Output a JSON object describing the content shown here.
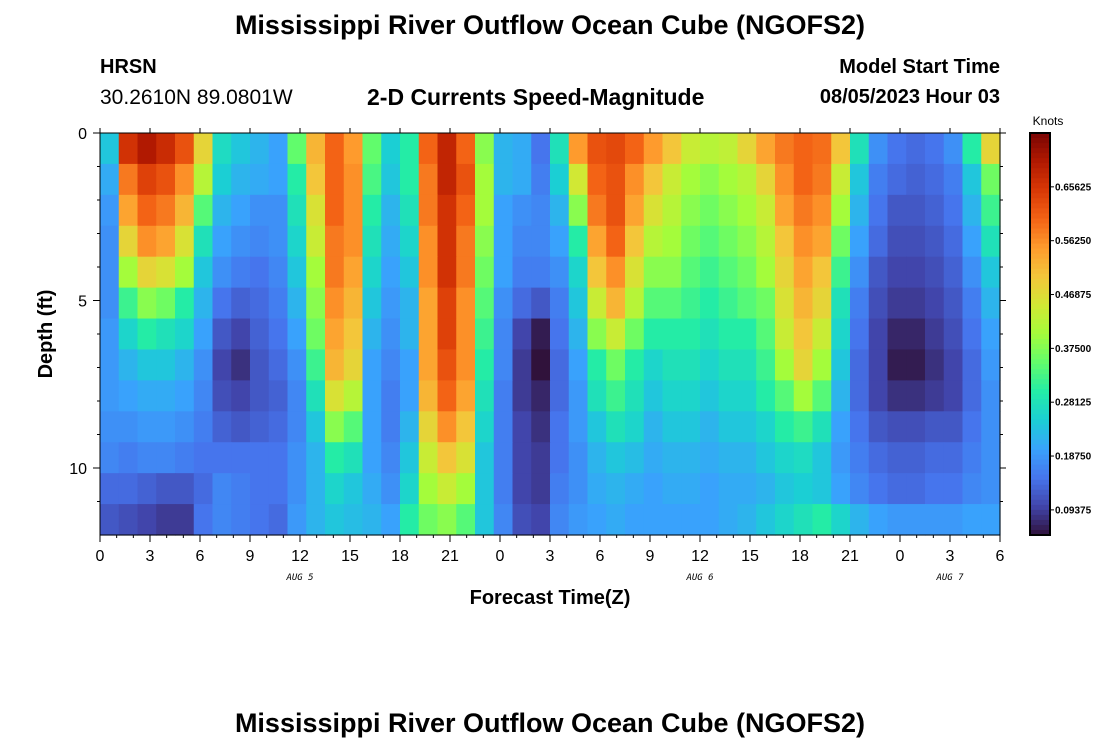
{
  "header": {
    "title": "Mississippi River Outflow Ocean Cube (NGOFS2)",
    "station_name": "HRSN",
    "station_coords": "30.2610N  89.0801W",
    "subtitle": "2-D Currents Speed-Magnitude",
    "model_start_label": "Model Start Time",
    "model_start_time": "08/05/2023 Hour 03"
  },
  "footer": {
    "title": "Mississippi River Outflow Ocean Cube (NGOFS2)"
  },
  "chart_data": {
    "type": "heatmap",
    "title": "2-D Currents Speed-Magnitude",
    "xlabel": "Forecast Time(Z)",
    "ylabel": "Depth (ft)",
    "x_tick_labels": [
      "0",
      "3",
      "6",
      "9",
      "12",
      "15",
      "18",
      "21",
      "0",
      "3",
      "6",
      "9",
      "12",
      "15",
      "18",
      "21",
      "0",
      "3",
      "6"
    ],
    "x_range_hours": [
      0,
      54
    ],
    "y_tick_values": [
      0,
      5,
      10
    ],
    "y_range_ft": [
      0,
      12
    ],
    "date_labels": [
      {
        "label": "AUG 5",
        "hour": 12
      },
      {
        "label": "AUG 6",
        "hour": 36
      },
      {
        "label": "AUG 7",
        "hour": 51
      }
    ],
    "colorbar": {
      "label": "Knots",
      "range": [
        0.05,
        0.75
      ],
      "tick_labels": [
        "0.65625",
        "0.56250",
        "0.46875",
        "0.37500",
        "0.28125",
        "0.18750",
        "0.09375"
      ],
      "colors": [
        "#30123b",
        "#4145ab",
        "#4675ed",
        "#39a2fc",
        "#1bcfd4",
        "#24eca6",
        "#61fc6c",
        "#a4fc3b",
        "#d1e834",
        "#f3c63a",
        "#fe9b2d",
        "#f36315",
        "#d93806",
        "#b11901",
        "#7a0403"
      ]
    },
    "speed_knots_grid": [
      [
        0.24,
        0.66,
        0.7,
        0.67,
        0.62,
        0.48,
        0.27,
        0.24,
        0.22,
        0.2,
        0.35,
        0.52,
        0.6,
        0.55,
        0.35,
        0.25,
        0.3,
        0.6,
        0.68,
        0.6,
        0.38,
        0.22,
        0.21,
        0.15,
        0.28,
        0.55,
        0.62,
        0.63,
        0.6,
        0.55,
        0.5,
        0.44,
        0.42,
        0.43,
        0.48,
        0.54,
        0.58,
        0.6,
        0.59,
        0.5,
        0.28,
        0.18,
        0.15,
        0.14,
        0.15,
        0.18,
        0.3,
        0.48
      ],
      [
        0.21,
        0.58,
        0.64,
        0.62,
        0.56,
        0.42,
        0.25,
        0.22,
        0.21,
        0.2,
        0.3,
        0.5,
        0.6,
        0.56,
        0.33,
        0.24,
        0.3,
        0.58,
        0.68,
        0.62,
        0.4,
        0.22,
        0.21,
        0.16,
        0.25,
        0.45,
        0.6,
        0.62,
        0.56,
        0.5,
        0.44,
        0.4,
        0.38,
        0.4,
        0.42,
        0.48,
        0.56,
        0.6,
        0.58,
        0.44,
        0.24,
        0.16,
        0.14,
        0.13,
        0.14,
        0.16,
        0.24,
        0.36
      ],
      [
        0.19,
        0.54,
        0.6,
        0.58,
        0.52,
        0.34,
        0.22,
        0.2,
        0.18,
        0.18,
        0.28,
        0.46,
        0.6,
        0.56,
        0.3,
        0.22,
        0.28,
        0.58,
        0.66,
        0.6,
        0.4,
        0.2,
        0.18,
        0.17,
        0.22,
        0.38,
        0.58,
        0.62,
        0.54,
        0.46,
        0.42,
        0.38,
        0.36,
        0.38,
        0.4,
        0.44,
        0.54,
        0.58,
        0.56,
        0.4,
        0.22,
        0.15,
        0.12,
        0.12,
        0.13,
        0.15,
        0.22,
        0.32
      ],
      [
        0.18,
        0.48,
        0.56,
        0.54,
        0.46,
        0.28,
        0.2,
        0.18,
        0.17,
        0.18,
        0.26,
        0.44,
        0.58,
        0.56,
        0.28,
        0.21,
        0.26,
        0.56,
        0.66,
        0.58,
        0.38,
        0.2,
        0.17,
        0.17,
        0.2,
        0.3,
        0.54,
        0.6,
        0.5,
        0.42,
        0.4,
        0.36,
        0.34,
        0.36,
        0.38,
        0.42,
        0.5,
        0.56,
        0.54,
        0.36,
        0.2,
        0.14,
        0.11,
        0.11,
        0.12,
        0.14,
        0.2,
        0.28
      ],
      [
        0.18,
        0.4,
        0.48,
        0.46,
        0.4,
        0.24,
        0.18,
        0.16,
        0.15,
        0.17,
        0.24,
        0.4,
        0.58,
        0.54,
        0.26,
        0.2,
        0.24,
        0.56,
        0.66,
        0.58,
        0.36,
        0.2,
        0.16,
        0.16,
        0.18,
        0.26,
        0.5,
        0.56,
        0.46,
        0.38,
        0.38,
        0.34,
        0.32,
        0.34,
        0.36,
        0.4,
        0.48,
        0.54,
        0.5,
        0.32,
        0.18,
        0.12,
        0.1,
        0.1,
        0.11,
        0.13,
        0.18,
        0.24
      ],
      [
        0.18,
        0.32,
        0.38,
        0.36,
        0.3,
        0.22,
        0.15,
        0.13,
        0.14,
        0.16,
        0.22,
        0.38,
        0.56,
        0.52,
        0.24,
        0.19,
        0.22,
        0.54,
        0.64,
        0.56,
        0.34,
        0.18,
        0.14,
        0.12,
        0.16,
        0.24,
        0.44,
        0.52,
        0.42,
        0.34,
        0.34,
        0.32,
        0.3,
        0.32,
        0.34,
        0.36,
        0.46,
        0.52,
        0.48,
        0.28,
        0.16,
        0.11,
        0.09,
        0.09,
        0.1,
        0.12,
        0.16,
        0.22
      ],
      [
        0.19,
        0.26,
        0.3,
        0.28,
        0.26,
        0.2,
        0.12,
        0.1,
        0.13,
        0.15,
        0.2,
        0.36,
        0.54,
        0.5,
        0.22,
        0.18,
        0.22,
        0.54,
        0.64,
        0.56,
        0.32,
        0.17,
        0.1,
        0.06,
        0.15,
        0.22,
        0.38,
        0.44,
        0.36,
        0.3,
        0.3,
        0.3,
        0.28,
        0.3,
        0.3,
        0.34,
        0.44,
        0.5,
        0.44,
        0.26,
        0.15,
        0.1,
        0.07,
        0.07,
        0.09,
        0.11,
        0.15,
        0.2
      ],
      [
        0.19,
        0.22,
        0.24,
        0.24,
        0.22,
        0.18,
        0.1,
        0.08,
        0.12,
        0.14,
        0.18,
        0.32,
        0.52,
        0.48,
        0.2,
        0.17,
        0.2,
        0.54,
        0.62,
        0.56,
        0.3,
        0.17,
        0.09,
        0.04,
        0.14,
        0.2,
        0.3,
        0.36,
        0.3,
        0.26,
        0.28,
        0.28,
        0.26,
        0.28,
        0.28,
        0.32,
        0.4,
        0.48,
        0.4,
        0.24,
        0.14,
        0.1,
        0.06,
        0.06,
        0.08,
        0.1,
        0.14,
        0.19
      ],
      [
        0.19,
        0.2,
        0.21,
        0.21,
        0.2,
        0.17,
        0.11,
        0.1,
        0.12,
        0.13,
        0.17,
        0.28,
        0.46,
        0.42,
        0.2,
        0.16,
        0.2,
        0.52,
        0.6,
        0.54,
        0.28,
        0.16,
        0.09,
        0.07,
        0.14,
        0.19,
        0.28,
        0.32,
        0.28,
        0.24,
        0.26,
        0.26,
        0.24,
        0.26,
        0.26,
        0.3,
        0.34,
        0.4,
        0.34,
        0.22,
        0.14,
        0.1,
        0.08,
        0.08,
        0.09,
        0.1,
        0.14,
        0.18
      ],
      [
        0.18,
        0.18,
        0.19,
        0.19,
        0.18,
        0.16,
        0.13,
        0.12,
        0.13,
        0.14,
        0.17,
        0.24,
        0.38,
        0.34,
        0.2,
        0.16,
        0.22,
        0.48,
        0.56,
        0.5,
        0.26,
        0.16,
        0.1,
        0.08,
        0.15,
        0.19,
        0.24,
        0.28,
        0.26,
        0.22,
        0.24,
        0.24,
        0.22,
        0.24,
        0.24,
        0.26,
        0.3,
        0.32,
        0.28,
        0.2,
        0.15,
        0.12,
        0.11,
        0.11,
        0.12,
        0.12,
        0.15,
        0.18
      ],
      [
        0.17,
        0.16,
        0.17,
        0.17,
        0.16,
        0.15,
        0.15,
        0.15,
        0.15,
        0.15,
        0.18,
        0.22,
        0.3,
        0.28,
        0.2,
        0.17,
        0.24,
        0.44,
        0.5,
        0.46,
        0.24,
        0.16,
        0.1,
        0.09,
        0.15,
        0.18,
        0.22,
        0.24,
        0.23,
        0.21,
        0.22,
        0.22,
        0.21,
        0.22,
        0.22,
        0.24,
        0.26,
        0.27,
        0.24,
        0.19,
        0.16,
        0.14,
        0.13,
        0.13,
        0.14,
        0.14,
        0.16,
        0.18
      ],
      [
        0.14,
        0.14,
        0.13,
        0.12,
        0.12,
        0.14,
        0.17,
        0.16,
        0.15,
        0.15,
        0.18,
        0.22,
        0.26,
        0.24,
        0.21,
        0.18,
        0.26,
        0.4,
        0.44,
        0.4,
        0.24,
        0.16,
        0.1,
        0.09,
        0.16,
        0.18,
        0.21,
        0.22,
        0.21,
        0.2,
        0.21,
        0.21,
        0.2,
        0.21,
        0.21,
        0.22,
        0.24,
        0.25,
        0.24,
        0.2,
        0.17,
        0.15,
        0.14,
        0.14,
        0.15,
        0.15,
        0.17,
        0.18
      ],
      [
        0.12,
        0.11,
        0.1,
        0.09,
        0.09,
        0.15,
        0.17,
        0.16,
        0.15,
        0.14,
        0.19,
        0.22,
        0.24,
        0.23,
        0.22,
        0.2,
        0.3,
        0.36,
        0.38,
        0.34,
        0.24,
        0.17,
        0.11,
        0.1,
        0.17,
        0.19,
        0.2,
        0.21,
        0.2,
        0.2,
        0.2,
        0.2,
        0.2,
        0.21,
        0.22,
        0.24,
        0.26,
        0.28,
        0.3,
        0.26,
        0.22,
        0.2,
        0.19,
        0.19,
        0.19,
        0.19,
        0.2,
        0.2
      ]
    ]
  }
}
